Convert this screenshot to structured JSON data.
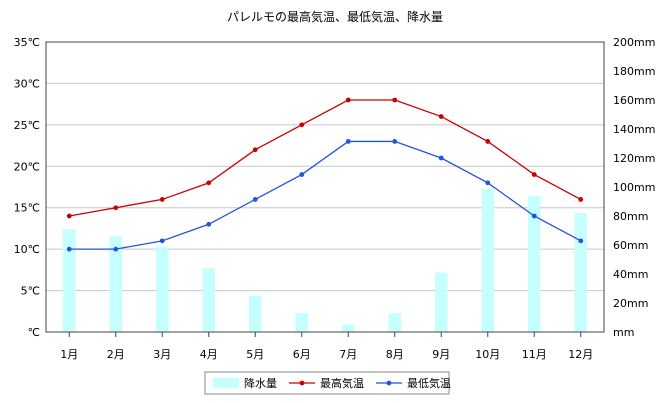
{
  "chart_data": {
    "type": "bar+line",
    "title": "パレルモの最高気温、最低気温、降水量",
    "categories": [
      "1月",
      "2月",
      "3月",
      "4月",
      "5月",
      "6月",
      "7月",
      "8月",
      "9月",
      "10月",
      "11月",
      "12月"
    ],
    "left_axis": {
      "ylim": [
        0,
        35
      ],
      "ticks": [
        "℃",
        "5℃",
        "10℃",
        "15℃",
        "20℃",
        "25℃",
        "30℃",
        "35℃"
      ]
    },
    "right_axis": {
      "ylim": [
        0,
        200
      ],
      "ticks": [
        "mm",
        "20mm",
        "40mm",
        "60mm",
        "80mm",
        "100mm",
        "120mm",
        "140mm",
        "160mm",
        "180mm",
        "200mm"
      ]
    },
    "series": [
      {
        "name": "降水量",
        "kind": "bar",
        "axis": "right",
        "color": "#c6ffff",
        "values": [
          71,
          66,
          59,
          44,
          25,
          13,
          5,
          13,
          41,
          99,
          94,
          82
        ]
      },
      {
        "name": "最高気温",
        "kind": "line",
        "axis": "left",
        "color": "#cc0000",
        "values": [
          14,
          15,
          16,
          18,
          22,
          25,
          28,
          28,
          26,
          23,
          19,
          16
        ]
      },
      {
        "name": "最低気温",
        "kind": "line",
        "axis": "left",
        "color": "#2255dd",
        "values": [
          10,
          10,
          11,
          13,
          16,
          19,
          23,
          23,
          21,
          18,
          14,
          11
        ]
      }
    ],
    "grid": true,
    "legend_position": "bottom"
  }
}
